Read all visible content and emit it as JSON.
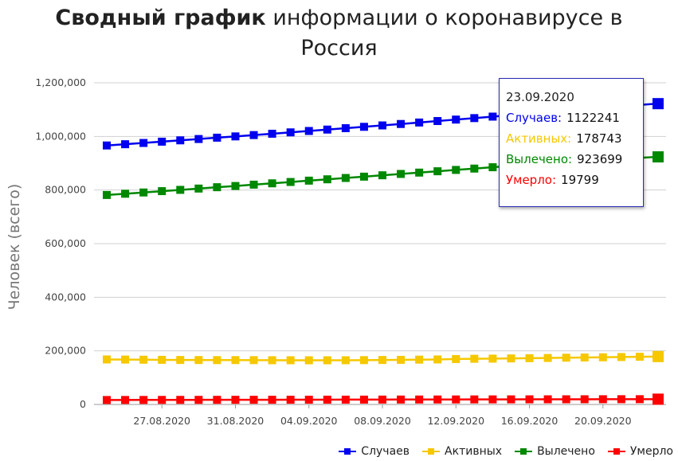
{
  "title_bold": "Сводный график",
  "title_rest": " информации о коронавирусе в",
  "title_line2": "Россия",
  "chart_data": {
    "type": "line",
    "title": "Сводный график информации о коронавирусе в Россия",
    "ylabel": "Человек (всего)",
    "xlabel": "",
    "ylim": [
      0,
      1200000
    ],
    "yticks": [
      0,
      200000,
      400000,
      600000,
      800000,
      1000000,
      1200000
    ],
    "ytick_labels": [
      "0",
      "200,000",
      "400,000",
      "600,000",
      "800,000",
      "1,000,000",
      "1,200,000"
    ],
    "xtick_labels": [
      "27.08.2020",
      "31.08.2020",
      "04.09.2020",
      "08.09.2020",
      "12.09.2020",
      "16.09.2020",
      "20.09.2020"
    ],
    "x": [
      "24.08.2020",
      "25.08.2020",
      "26.08.2020",
      "27.08.2020",
      "28.08.2020",
      "29.08.2020",
      "30.08.2020",
      "31.08.2020",
      "01.09.2020",
      "02.09.2020",
      "03.09.2020",
      "04.09.2020",
      "05.09.2020",
      "06.09.2020",
      "07.09.2020",
      "08.09.2020",
      "09.09.2020",
      "10.09.2020",
      "11.09.2020",
      "12.09.2020",
      "13.09.2020",
      "14.09.2020",
      "15.09.2020",
      "16.09.2020",
      "17.09.2020",
      "18.09.2020",
      "19.09.2020",
      "20.09.2020",
      "21.09.2020",
      "22.09.2020",
      "23.09.2020"
    ],
    "grid": true,
    "legend_position": "bottom-right",
    "series": [
      {
        "name": "Случаев",
        "color": "#0000ee",
        "values": [
          966189,
          970865,
          975576,
          980405,
          985346,
          990326,
          995319,
          1000048,
          1005000,
          1009995,
          1015105,
          1020310,
          1025505,
          1030690,
          1035789,
          1041007,
          1046370,
          1051874,
          1057362,
          1062811,
          1068320,
          1073849,
          1079519,
          1085281,
          1091186,
          1097251,
          1103399,
          1109595,
          1115810,
          1117487,
          1122241
        ]
      },
      {
        "name": "Активных",
        "color": "#f5c800",
        "values": [
          168000,
          167500,
          167000,
          166500,
          166000,
          165800,
          165500,
          165600,
          165400,
          165100,
          165000,
          164900,
          164900,
          165000,
          165400,
          166000,
          166500,
          167200,
          168000,
          169500,
          170500,
          171000,
          171800,
          172600,
          173500,
          174500,
          175300,
          176000,
          177000,
          178000,
          178743
        ]
      },
      {
        "name": "Вылечено",
        "color": "#008800",
        "values": [
          781519,
          786150,
          790851,
          795835,
          800611,
          805486,
          810511,
          815038,
          820000,
          825000,
          830000,
          835000,
          840000,
          845000,
          849860,
          855000,
          860000,
          865000,
          870000,
          875000,
          880000,
          885000,
          890000,
          895000,
          900000,
          905000,
          910000,
          914000,
          918000,
          920000,
          923699
        ]
      },
      {
        "name": "Умерло",
        "color": "#ff0000",
        "values": [
          16683,
          16804,
          16914,
          17045,
          17165,
          17250,
          17365,
          17441,
          17500,
          17600,
          17740,
          17850,
          17950,
          18050,
          18150,
          18260,
          18385,
          18500,
          18625,
          18740,
          18860,
          18960,
          19050,
          19150,
          19250,
          19350,
          19450,
          19550,
          19650,
          19720,
          19799
        ]
      }
    ]
  },
  "tooltip": {
    "date": "23.09.2020",
    "rows": [
      {
        "label": "Случаев:",
        "value": "1122241",
        "color": "#0000ee"
      },
      {
        "label": "Активных:",
        "value": "178743",
        "color": "#f5c800"
      },
      {
        "label": "Вылечено:",
        "value": "923699",
        "color": "#008800"
      },
      {
        "label": "Умерло:",
        "value": "19799",
        "color": "#ff0000"
      }
    ]
  },
  "legend": [
    {
      "label": "Случаев",
      "color": "#0000ee"
    },
    {
      "label": "Активных",
      "color": "#f5c800"
    },
    {
      "label": "Вылечено",
      "color": "#008800"
    },
    {
      "label": "Умерло",
      "color": "#ff0000"
    }
  ]
}
